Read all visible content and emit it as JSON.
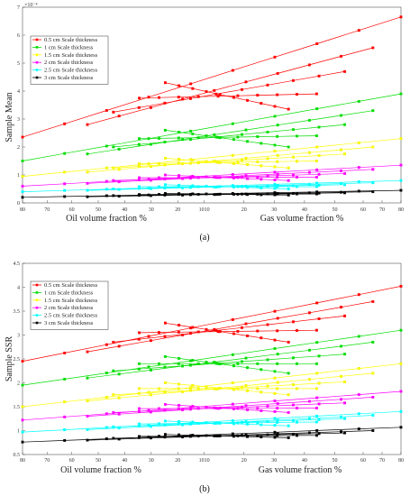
{
  "chart_data": [
    {
      "type": "line",
      "caption": "(a)",
      "y_exponent_label": "×10⁻⁴",
      "ylabel": "Sample Mean",
      "xlabel_left": "Oil volume fraction %",
      "xlabel_right": "Gas volume fraction %",
      "ylim": [
        0,
        7
      ],
      "y_ticks": [
        "0",
        "1",
        "2",
        "3",
        "4",
        "5",
        "6",
        "7"
      ],
      "x_ticks": [
        "80",
        "70",
        "60",
        "50",
        "40",
        "30",
        "20",
        "1010",
        "20",
        "30",
        "40",
        "50",
        "60",
        "70",
        "80"
      ],
      "legend_position": "top-left",
      "series": [
        {
          "name": "0.5 cm Scale thickness",
          "color": "#ff0000",
          "rows": [
            {
              "oil": 80,
              "gas": 80,
              "start": 2.35,
              "end": 6.65
            },
            {
              "oil": 55,
              "gas": 70,
              "start": 2.8,
              "end": 5.55
            },
            {
              "oil": 45,
              "gas": 60,
              "start": 3.25,
              "end": 4.7
            },
            {
              "oil": 35,
              "gas": 50,
              "start": 3.75,
              "end": 3.9
            },
            {
              "oil": 25,
              "gas": 40,
              "start": 4.3,
              "end": 3.35
            }
          ]
        },
        {
          "name": "1 cm Scale thickness",
          "color": "#00dd00",
          "rows": [
            {
              "oil": 80,
              "gas": 80,
              "start": 1.5,
              "end": 3.9
            },
            {
              "oil": 55,
              "gas": 70,
              "start": 1.75,
              "end": 3.3
            },
            {
              "oil": 45,
              "gas": 60,
              "start": 2.0,
              "end": 2.8
            },
            {
              "oil": 35,
              "gas": 50,
              "start": 2.3,
              "end": 2.4
            },
            {
              "oil": 25,
              "gas": 40,
              "start": 2.6,
              "end": 2.0
            }
          ]
        },
        {
          "name": "1.5 cm Scale thickness",
          "color": "#ffff00",
          "rows": [
            {
              "oil": 80,
              "gas": 80,
              "start": 0.95,
              "end": 2.3
            },
            {
              "oil": 55,
              "gas": 70,
              "start": 1.1,
              "end": 2.0
            },
            {
              "oil": 45,
              "gas": 60,
              "start": 1.25,
              "end": 1.75
            },
            {
              "oil": 35,
              "gas": 50,
              "start": 1.4,
              "end": 1.5
            },
            {
              "oil": 25,
              "gas": 40,
              "start": 1.6,
              "end": 1.25
            }
          ]
        },
        {
          "name": "2 cm Scale thickness",
          "color": "#ff00ff",
          "rows": [
            {
              "oil": 80,
              "gas": 80,
              "start": 0.6,
              "end": 1.35
            },
            {
              "oil": 55,
              "gas": 70,
              "start": 0.7,
              "end": 1.2
            },
            {
              "oil": 45,
              "gas": 60,
              "start": 0.8,
              "end": 1.05
            },
            {
              "oil": 35,
              "gas": 50,
              "start": 0.9,
              "end": 0.92
            },
            {
              "oil": 25,
              "gas": 40,
              "start": 1.0,
              "end": 0.8
            }
          ]
        },
        {
          "name": "2.5 cm Scale thickness",
          "color": "#00ffff",
          "rows": [
            {
              "oil": 80,
              "gas": 80,
              "start": 0.4,
              "end": 0.8
            },
            {
              "oil": 55,
              "gas": 70,
              "start": 0.45,
              "end": 0.72
            },
            {
              "oil": 45,
              "gas": 60,
              "start": 0.5,
              "end": 0.65
            },
            {
              "oil": 35,
              "gas": 50,
              "start": 0.58,
              "end": 0.58
            },
            {
              "oil": 25,
              "gas": 40,
              "start": 0.65,
              "end": 0.5
            }
          ]
        },
        {
          "name": "3 cm Scale thickness",
          "color": "#000000",
          "rows": [
            {
              "oil": 80,
              "gas": 80,
              "start": 0.2,
              "end": 0.45
            },
            {
              "oil": 55,
              "gas": 70,
              "start": 0.22,
              "end": 0.4
            },
            {
              "oil": 45,
              "gas": 60,
              "start": 0.26,
              "end": 0.36
            },
            {
              "oil": 35,
              "gas": 50,
              "start": 0.3,
              "end": 0.32
            },
            {
              "oil": 25,
              "gas": 40,
              "start": 0.34,
              "end": 0.28
            }
          ]
        }
      ]
    },
    {
      "type": "line",
      "caption": "(b)",
      "y_exponent_label": "",
      "ylabel": "Sample SSR",
      "xlabel_left": "Oil volume fraction %",
      "xlabel_right": "Gas volume fraction %",
      "ylim": [
        0.5,
        4.5
      ],
      "y_ticks": [
        "0.5",
        "1",
        "1.5",
        "2",
        "2.5",
        "3",
        "3.5",
        "4",
        "4.5"
      ],
      "x_ticks": [
        "80",
        "70",
        "60",
        "50",
        "40",
        "30",
        "20",
        "1010",
        "20",
        "30",
        "40",
        "50",
        "60",
        "70",
        "80"
      ],
      "legend_position": "top-left",
      "series": [
        {
          "name": "0.5 cm Scale thickness",
          "color": "#ff0000",
          "rows": [
            {
              "oil": 80,
              "gas": 80,
              "start": 2.45,
              "end": 4.02
            },
            {
              "oil": 55,
              "gas": 70,
              "start": 2.65,
              "end": 3.7
            },
            {
              "oil": 45,
              "gas": 60,
              "start": 2.85,
              "end": 3.4
            },
            {
              "oil": 35,
              "gas": 50,
              "start": 3.05,
              "end": 3.1
            },
            {
              "oil": 25,
              "gas": 40,
              "start": 3.25,
              "end": 2.85
            }
          ]
        },
        {
          "name": "1 cm Scale thickness",
          "color": "#00dd00",
          "rows": [
            {
              "oil": 80,
              "gas": 80,
              "start": 1.95,
              "end": 3.1
            },
            {
              "oil": 55,
              "gas": 70,
              "start": 2.1,
              "end": 2.85
            },
            {
              "oil": 45,
              "gas": 60,
              "start": 2.25,
              "end": 2.6
            },
            {
              "oil": 35,
              "gas": 50,
              "start": 2.4,
              "end": 2.4
            },
            {
              "oil": 25,
              "gas": 40,
              "start": 2.55,
              "end": 2.2
            }
          ]
        },
        {
          "name": "1.5 cm Scale thickness",
          "color": "#ffff00",
          "rows": [
            {
              "oil": 80,
              "gas": 80,
              "start": 1.5,
              "end": 2.4
            },
            {
              "oil": 55,
              "gas": 70,
              "start": 1.62,
              "end": 2.2
            },
            {
              "oil": 45,
              "gas": 60,
              "start": 1.75,
              "end": 2.02
            },
            {
              "oil": 35,
              "gas": 50,
              "start": 1.88,
              "end": 1.88
            },
            {
              "oil": 25,
              "gas": 40,
              "start": 2.0,
              "end": 1.75
            }
          ]
        },
        {
          "name": "2 cm Scale thickness",
          "color": "#ff00ff",
          "rows": [
            {
              "oil": 80,
              "gas": 80,
              "start": 1.22,
              "end": 1.82
            },
            {
              "oil": 55,
              "gas": 70,
              "start": 1.3,
              "end": 1.7
            },
            {
              "oil": 45,
              "gas": 60,
              "start": 1.38,
              "end": 1.58
            },
            {
              "oil": 35,
              "gas": 50,
              "start": 1.46,
              "end": 1.47
            },
            {
              "oil": 25,
              "gas": 40,
              "start": 1.55,
              "end": 1.38
            }
          ]
        },
        {
          "name": "2.5 cm Scale thickness",
          "color": "#00ffff",
          "rows": [
            {
              "oil": 80,
              "gas": 80,
              "start": 0.97,
              "end": 1.4
            },
            {
              "oil": 55,
              "gas": 70,
              "start": 1.02,
              "end": 1.32
            },
            {
              "oil": 45,
              "gas": 60,
              "start": 1.08,
              "end": 1.25
            },
            {
              "oil": 35,
              "gas": 50,
              "start": 1.14,
              "end": 1.18
            },
            {
              "oil": 25,
              "gas": 40,
              "start": 1.2,
              "end": 1.1
            }
          ]
        },
        {
          "name": "3 cm Scale thickness",
          "color": "#000000",
          "rows": [
            {
              "oil": 80,
              "gas": 80,
              "start": 0.76,
              "end": 1.07
            },
            {
              "oil": 55,
              "gas": 70,
              "start": 0.8,
              "end": 1.0
            },
            {
              "oil": 45,
              "gas": 60,
              "start": 0.84,
              "end": 0.95
            },
            {
              "oil": 35,
              "gas": 50,
              "start": 0.88,
              "end": 0.9
            },
            {
              "oil": 25,
              "gas": 40,
              "start": 0.92,
              "end": 0.85
            }
          ]
        }
      ]
    }
  ]
}
